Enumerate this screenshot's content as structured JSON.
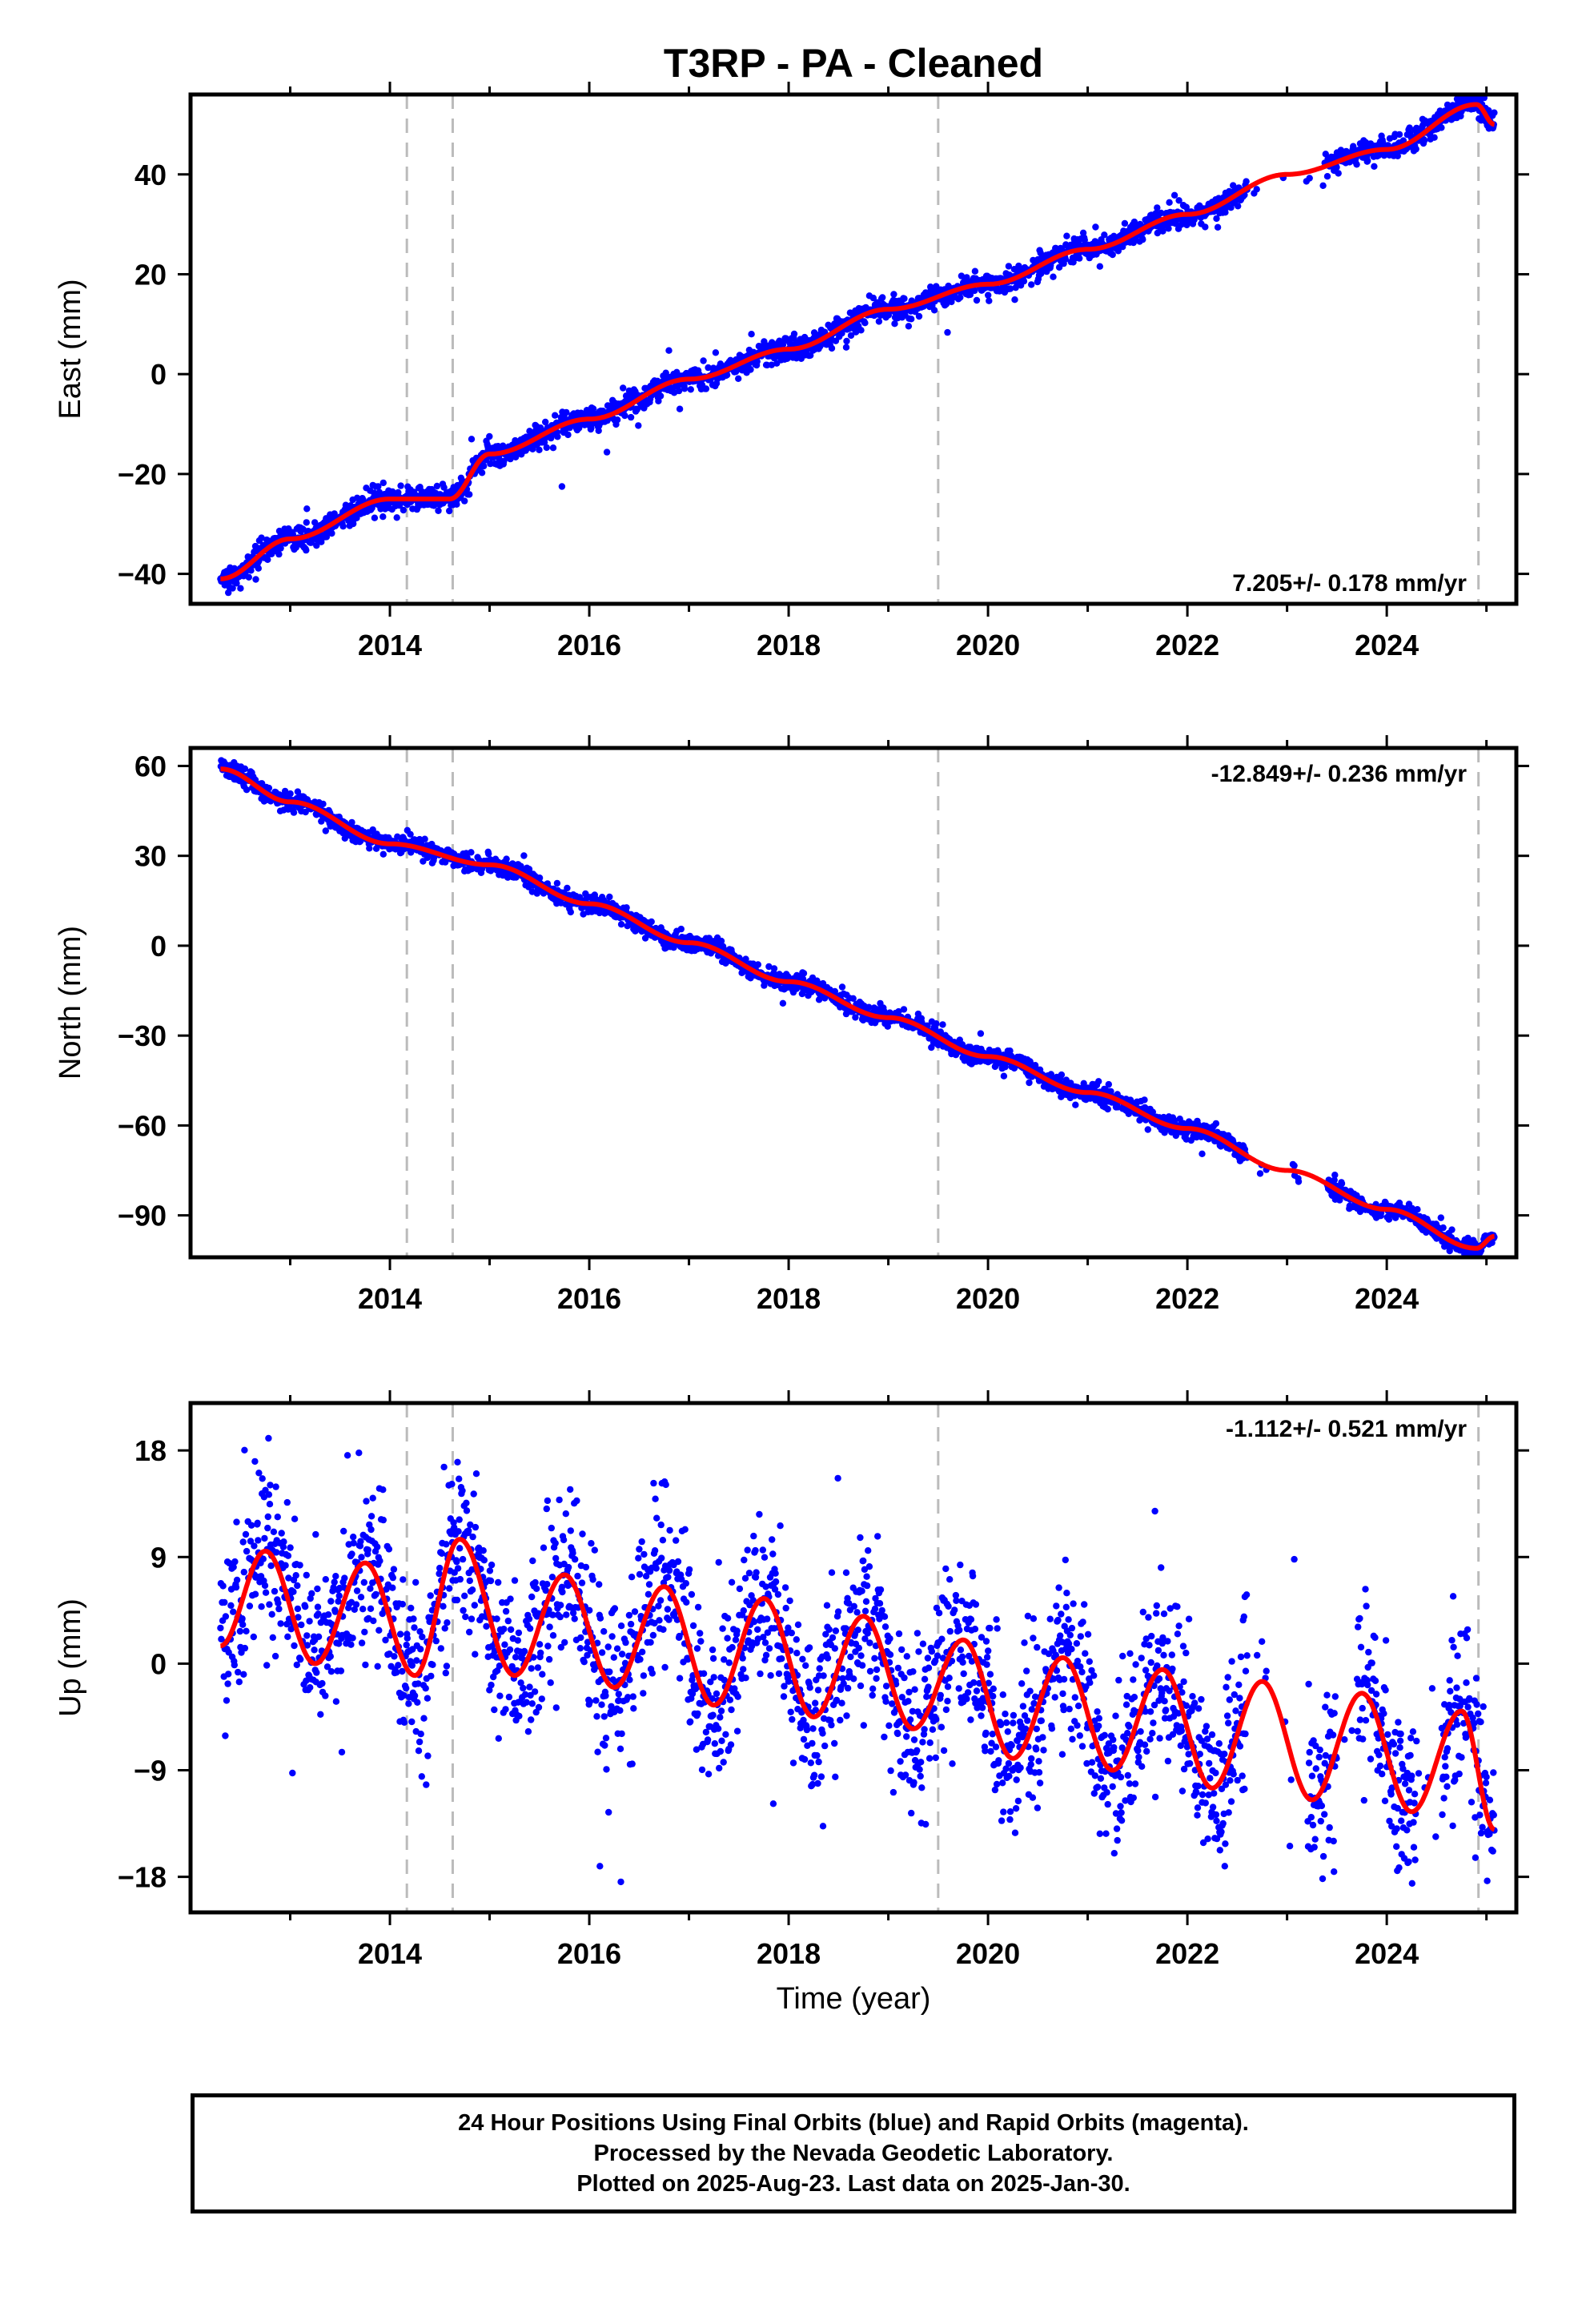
{
  "title": "T3RP  - PA - Cleaned",
  "colors": {
    "points": "#0000ff",
    "fit": "#ff0000",
    "vlines": "#bbbbbb",
    "frame": "#000000"
  },
  "vertical_lines": [
    2014.17,
    2014.63,
    2019.5,
    2024.92
  ],
  "chart_data": [
    {
      "type": "scatter",
      "name": "east",
      "ylabel": "East (mm)",
      "rate": "7.205+/- 0.178 mm/yr",
      "rate_position": "bottom-right",
      "xlim": [
        2012.0,
        2025.3
      ],
      "ylim": [
        -46,
        56
      ],
      "xticks": [
        2014,
        2016,
        2018,
        2020,
        2022,
        2024
      ],
      "yticks": [
        -40,
        -20,
        0,
        20,
        40
      ],
      "trend": {
        "t0": 2012.3,
        "intercept": -42,
        "rate": 7.205,
        "amp": 3.0,
        "phase": -0.5
      },
      "noise": 1.2,
      "outlier_rate": 0.01,
      "gaps": [
        [
          2022.6,
          2023.4
        ]
      ],
      "jumps": [
        [
          2024.92,
          -3
        ]
      ],
      "fit_key_points": [
        {
          "x": 2012.3,
          "y": -41
        },
        {
          "x": 2013.0,
          "y": -33
        },
        {
          "x": 2014.0,
          "y": -25
        },
        {
          "x": 2014.6,
          "y": -25
        },
        {
          "x": 2015.0,
          "y": -16
        },
        {
          "x": 2016.0,
          "y": -9
        },
        {
          "x": 2017.0,
          "y": -1
        },
        {
          "x": 2018.0,
          "y": 5
        },
        {
          "x": 2019.0,
          "y": 13
        },
        {
          "x": 2020.0,
          "y": 18
        },
        {
          "x": 2021.0,
          "y": 25
        },
        {
          "x": 2022.0,
          "y": 32
        },
        {
          "x": 2023.0,
          "y": 40
        },
        {
          "x": 2024.0,
          "y": 45
        },
        {
          "x": 2024.9,
          "y": 54
        },
        {
          "x": 2025.08,
          "y": 50
        }
      ]
    },
    {
      "type": "scatter",
      "name": "north",
      "ylabel": "North (mm)",
      "rate": "-12.849+/- 0.236 mm/yr",
      "rate_position": "top-right",
      "xlim": [
        2012.0,
        2025.3
      ],
      "ylim": [
        -104,
        66
      ],
      "xticks": [
        2014,
        2016,
        2018,
        2020,
        2022,
        2024
      ],
      "yticks": [
        -90,
        -60,
        -30,
        0,
        30,
        60
      ],
      "trend": {
        "t0": 2012.3,
        "intercept": 60,
        "rate": -12.849,
        "amp": 5.0,
        "phase": 0.0
      },
      "noise": 1.5,
      "outlier_rate": 0.01,
      "gaps": [
        [
          2022.6,
          2023.4
        ]
      ],
      "jumps": [
        [
          2024.92,
          3
        ]
      ],
      "fit_key_points": [
        {
          "x": 2012.3,
          "y": 59
        },
        {
          "x": 2013.0,
          "y": 48
        },
        {
          "x": 2014.0,
          "y": 34
        },
        {
          "x": 2015.0,
          "y": 27
        },
        {
          "x": 2016.0,
          "y": 14
        },
        {
          "x": 2017.0,
          "y": 1
        },
        {
          "x": 2018.0,
          "y": -12
        },
        {
          "x": 2019.0,
          "y": -24
        },
        {
          "x": 2020.0,
          "y": -37
        },
        {
          "x": 2021.0,
          "y": -49
        },
        {
          "x": 2022.0,
          "y": -61
        },
        {
          "x": 2023.0,
          "y": -75
        },
        {
          "x": 2024.0,
          "y": -88
        },
        {
          "x": 2024.9,
          "y": -101
        },
        {
          "x": 2025.08,
          "y": -97
        }
      ]
    },
    {
      "type": "scatter",
      "name": "up",
      "ylabel": "Up (mm)",
      "xlabel": "Time (year)",
      "rate": "-1.112+/- 0.521 mm/yr",
      "rate_position": "top-right",
      "xlim": [
        2012.0,
        2025.3
      ],
      "ylim": [
        -21,
        22
      ],
      "xticks": [
        2014,
        2016,
        2018,
        2020,
        2022,
        2024
      ],
      "yticks": [
        -18,
        -9,
        0,
        9,
        18
      ],
      "trend": {
        "t0": 2012.3,
        "intercept": 4,
        "rate": -1.112,
        "amp": 5.5,
        "phase": 0.45
      },
      "noise": 3.5,
      "outlier_rate": 0.02,
      "gaps": [
        [
          2022.6,
          2023.2
        ],
        [
          2023.5,
          2023.7
        ],
        [
          2024.3,
          2024.55
        ]
      ],
      "jumps": [],
      "fit_key_points": [
        {
          "x": 2012.3,
          "y": 1.5
        },
        {
          "x": 2012.75,
          "y": 9.5
        },
        {
          "x": 2013.25,
          "y": 0
        },
        {
          "x": 2013.75,
          "y": 8.5
        },
        {
          "x": 2014.25,
          "y": -1
        },
        {
          "x": 2014.7,
          "y": 10.5
        },
        {
          "x": 2015.25,
          "y": -1
        },
        {
          "x": 2015.75,
          "y": 7.5
        },
        {
          "x": 2016.25,
          "y": -2
        },
        {
          "x": 2016.75,
          "y": 6.5
        },
        {
          "x": 2017.25,
          "y": -3.5
        },
        {
          "x": 2017.75,
          "y": 5.5
        },
        {
          "x": 2018.25,
          "y": -4.5
        },
        {
          "x": 2018.75,
          "y": 4
        },
        {
          "x": 2019.25,
          "y": -5.5
        },
        {
          "x": 2019.75,
          "y": 2
        },
        {
          "x": 2020.25,
          "y": -8
        },
        {
          "x": 2020.75,
          "y": 0.5
        },
        {
          "x": 2021.25,
          "y": -9
        },
        {
          "x": 2021.75,
          "y": -0.5
        },
        {
          "x": 2022.25,
          "y": -10.5
        },
        {
          "x": 2022.75,
          "y": -1.5
        },
        {
          "x": 2023.25,
          "y": -11.5
        },
        {
          "x": 2023.75,
          "y": -2.5
        },
        {
          "x": 2024.25,
          "y": -12.5
        },
        {
          "x": 2024.75,
          "y": -4
        },
        {
          "x": 2025.08,
          "y": -14
        }
      ]
    }
  ],
  "caption": {
    "line1": "24 Hour Positions Using Final Orbits (blue) and Rapid Orbits (magenta).",
    "line2": "Processed by the Nevada Geodetic Laboratory.",
    "line3": "Plotted on 2025-Aug-23. Last data on 2025-Jan-30."
  }
}
